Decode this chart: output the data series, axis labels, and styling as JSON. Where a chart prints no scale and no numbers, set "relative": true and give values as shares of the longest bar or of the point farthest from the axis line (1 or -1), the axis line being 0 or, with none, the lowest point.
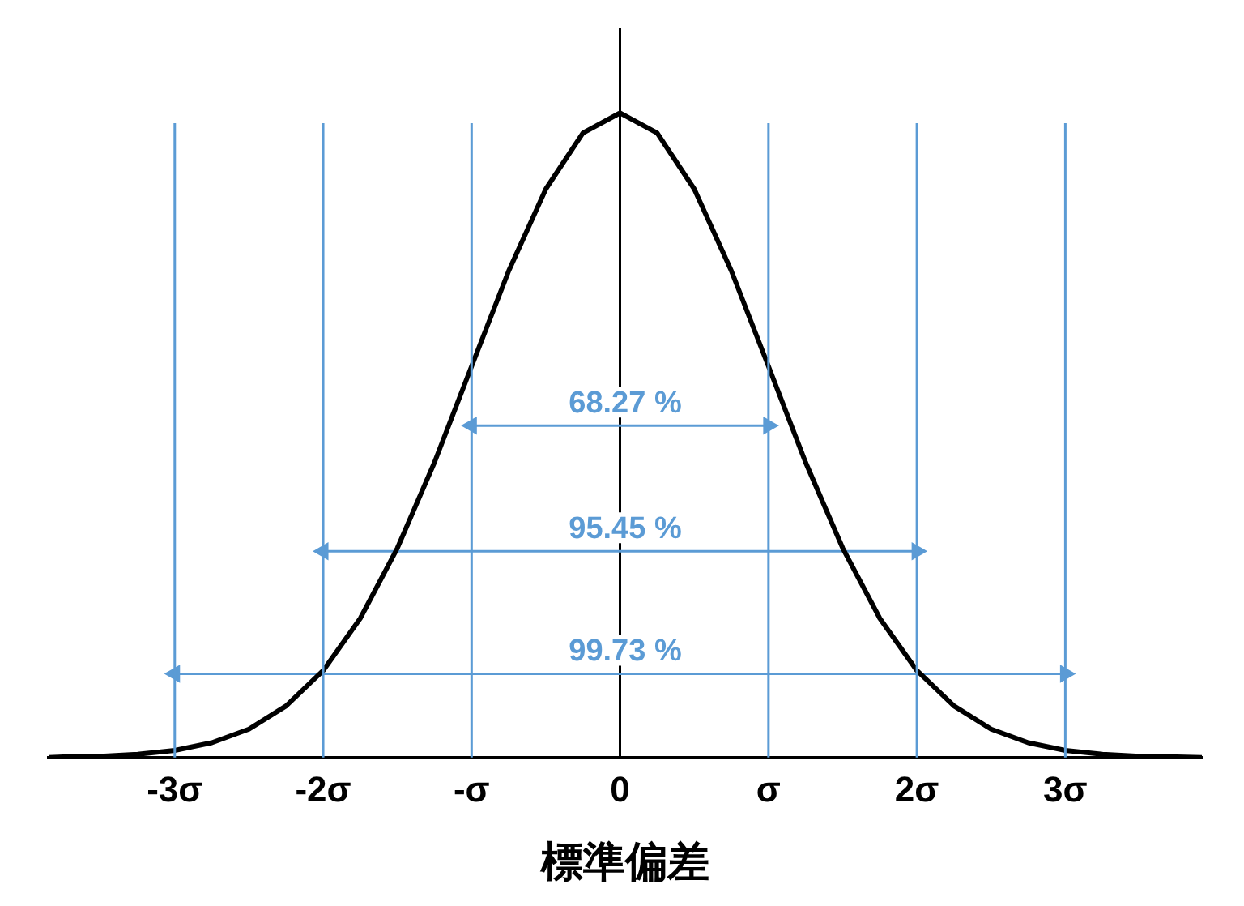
{
  "chart_data": {
    "type": "line",
    "relative": true,
    "xlabel": "標準偏差",
    "xlim": [
      -3.85,
      3.92
    ],
    "xticks": [
      {
        "value": -3,
        "label": "-3σ"
      },
      {
        "value": -2,
        "label": "-2σ"
      },
      {
        "value": -1,
        "label": "-σ"
      },
      0,
      {
        "value": 1,
        "label": "σ"
      },
      {
        "value": 2,
        "label": "2σ"
      },
      {
        "value": 3,
        "label": "3σ"
      }
    ],
    "tick_labels": "x",
    "grid": false,
    "legend": false,
    "marker": "none",
    "line_style": "solid",
    "series": [
      {
        "color": "#000000",
        "x": [
          -3.85,
          -3.75,
          -3.5,
          -3.25,
          -3,
          -2.75,
          -2.5,
          -2.25,
          -2,
          -1.75,
          -1.5,
          -1.25,
          -1,
          -0.75,
          -0.5,
          -0.25,
          0,
          0.25,
          0.5,
          0.75,
          1,
          1.25,
          1.5,
          1.75,
          2,
          2.25,
          2.5,
          2.75,
          3,
          3.25,
          3.5,
          3.75,
          3.92
        ],
        "values": [
          0,
          0.001,
          0.002,
          0.005,
          0.011,
          0.023,
          0.044,
          0.08,
          0.135,
          0.216,
          0.325,
          0.458,
          0.607,
          0.755,
          0.882,
          0.969,
          1,
          0.969,
          0.882,
          0.755,
          0.607,
          0.458,
          0.325,
          0.216,
          0.135,
          0.08,
          0.044,
          0.023,
          0.011,
          0.005,
          0.002,
          0.001,
          0
        ]
      },
      {
        "color": "#5b9bd5",
        "marker": "triangle",
        "x": [
          -1,
          1
        ],
        "values": [
          0.515,
          0.515
        ]
      },
      {
        "color": "#5b9bd5",
        "marker": "triangle",
        "x": [
          -2,
          2
        ],
        "values": [
          0.32,
          0.32
        ]
      },
      {
        "color": "#5b9bd5",
        "marker": "triangle",
        "x": [
          -3,
          3
        ],
        "values": [
          0.13,
          0.13
        ]
      }
    ],
    "ref_lines": [
      {
        "axis": "x",
        "value": -3,
        "color": "#5b9bd5"
      },
      {
        "axis": "x",
        "value": -2,
        "color": "#5b9bd5"
      },
      {
        "axis": "x",
        "value": -1,
        "color": "#5b9bd5"
      },
      {
        "axis": "x",
        "value": 1,
        "color": "#5b9bd5"
      },
      {
        "axis": "x",
        "value": 2,
        "color": "#5b9bd5"
      },
      {
        "axis": "x",
        "value": 3,
        "color": "#5b9bd5"
      }
    ],
    "annotations": [
      {
        "text": "68.27 %",
        "y": 0.515
      },
      {
        "text": "95.45 %",
        "y": 0.32
      },
      {
        "text": "99.73 %",
        "y": 0.13
      }
    ]
  }
}
